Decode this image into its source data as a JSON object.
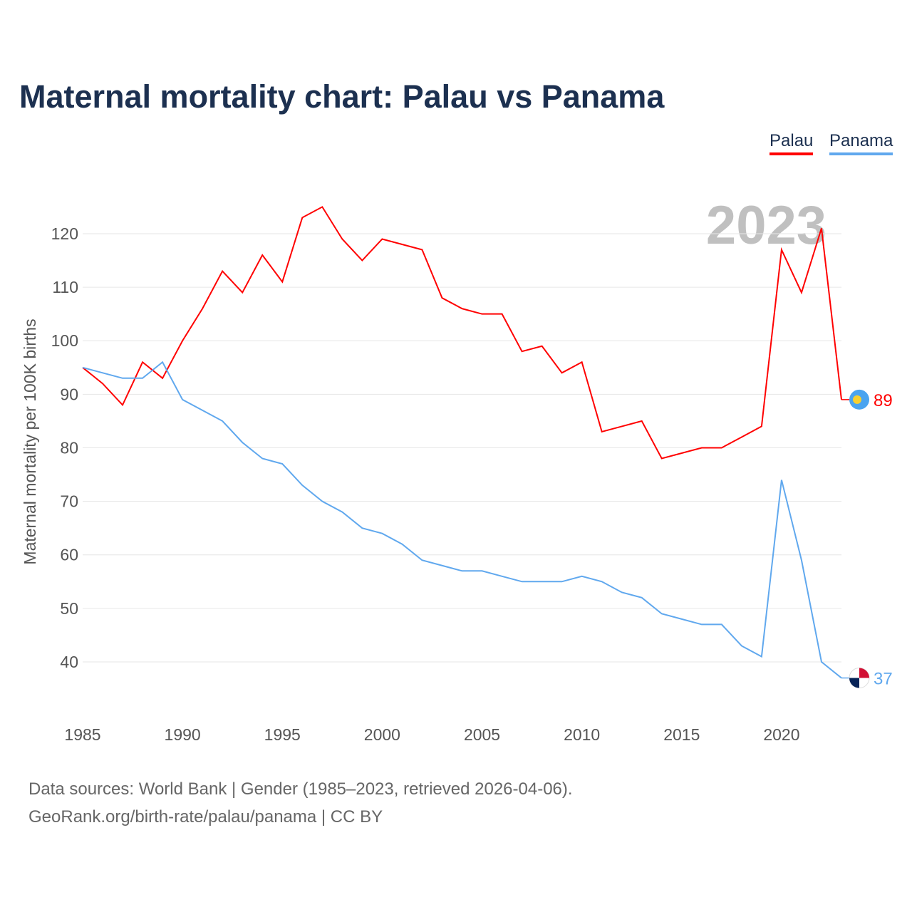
{
  "title": "Maternal mortality chart: Palau vs Panama",
  "legend": [
    "Palau",
    "Panama"
  ],
  "year_label": "2023",
  "footer": {
    "line1": "Data sources: World Bank | Gender (1985–2023, retrieved 2026-04-06).",
    "line2": "GeoRank.org/birth-rate/palau/panama | CC BY"
  },
  "chart_data": {
    "type": "line",
    "title": "Maternal mortality chart: Palau vs Panama",
    "xlabel": "",
    "ylabel": "Maternal mortality per 100K births",
    "xlim": [
      1985,
      2023
    ],
    "ylim": [
      40,
      120
    ],
    "xticks": [
      "1985",
      "1990",
      "1995",
      "2000",
      "2005",
      "2010",
      "2015",
      "2020"
    ],
    "yticks": [
      "40",
      "50",
      "60",
      "70",
      "80",
      "90",
      "100",
      "110",
      "120"
    ],
    "grid": true,
    "legend_position": "top-right",
    "x": [
      1985,
      1986,
      1987,
      1988,
      1989,
      1990,
      1991,
      1992,
      1993,
      1994,
      1995,
      1996,
      1997,
      1998,
      1999,
      2000,
      2001,
      2002,
      2003,
      2004,
      2005,
      2006,
      2007,
      2008,
      2009,
      2010,
      2011,
      2012,
      2013,
      2014,
      2015,
      2016,
      2017,
      2018,
      2019,
      2020,
      2021,
      2022,
      2023
    ],
    "series": [
      {
        "name": "Palau",
        "color": "#ff0000",
        "end_label": "89",
        "values": [
          95,
          92,
          88,
          96,
          93,
          100,
          106,
          113,
          109,
          116,
          111,
          123,
          125,
          119,
          115,
          119,
          118,
          117,
          108,
          106,
          105,
          105,
          98,
          99,
          94,
          96,
          83,
          84,
          85,
          78,
          79,
          80,
          80,
          82,
          84,
          117,
          109,
          121,
          89
        ]
      },
      {
        "name": "Panama",
        "color": "#60a8ee",
        "end_label": "37",
        "values": [
          95,
          94,
          93,
          93,
          96,
          89,
          87,
          85,
          81,
          78,
          77,
          73,
          70,
          68,
          65,
          64,
          62,
          59,
          58,
          57,
          57,
          56,
          55,
          55,
          55,
          56,
          55,
          53,
          52,
          49,
          48,
          47,
          47,
          43,
          41,
          74,
          59,
          40,
          37
        ]
      }
    ]
  }
}
